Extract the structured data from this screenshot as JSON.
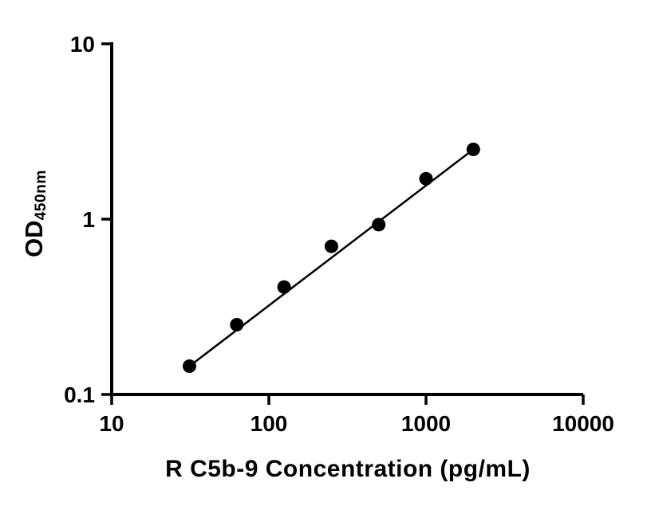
{
  "figure": {
    "background_color": "#ffffff",
    "axis_color": "#000000"
  },
  "chart_data": {
    "type": "scatter",
    "title": "",
    "xlabel": "R C5b-9 Concentration (pg/mL)",
    "ylabel_main": "OD",
    "ylabel_sub": "450nm",
    "xscale": "log",
    "yscale": "log",
    "xlim": [
      10,
      10000
    ],
    "ylim": [
      0.1,
      10
    ],
    "x_ticks": [
      "10",
      "100",
      "1000",
      "10000"
    ],
    "y_ticks": [
      "0.1",
      "1",
      "10"
    ],
    "grid": false,
    "legend": false,
    "marker_color": "#000000",
    "line_color": "#000000",
    "x": [
      31.25,
      62.5,
      125,
      250,
      500,
      1000,
      2000
    ],
    "y": [
      0.145,
      0.25,
      0.41,
      0.7,
      0.93,
      1.7,
      2.5
    ],
    "fit_line": {
      "x": [
        31.25,
        2000
      ],
      "y": [
        0.145,
        2.5
      ]
    }
  }
}
